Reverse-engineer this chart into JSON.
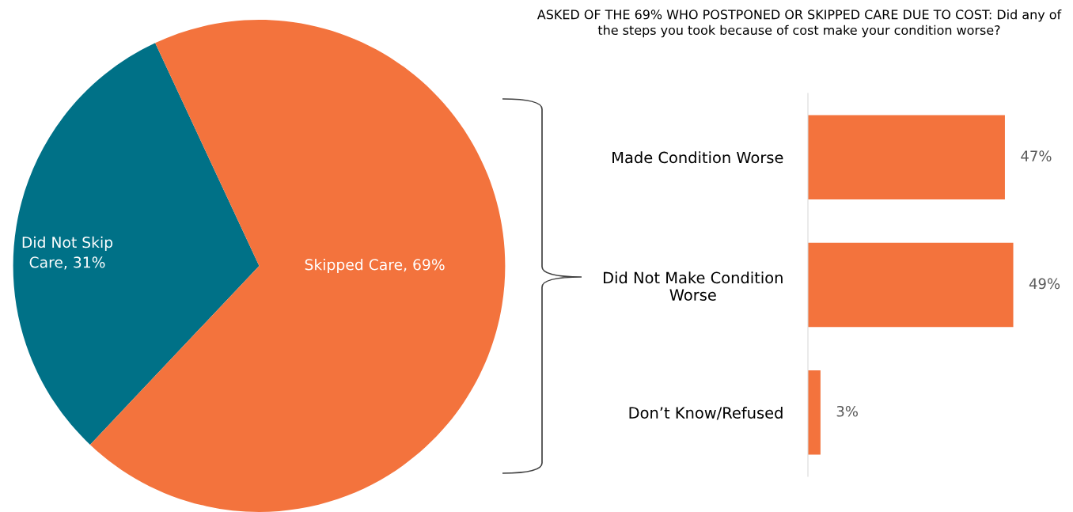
{
  "chart_data": [
    {
      "type": "pie",
      "categories": [
        "Did Not Skip Care",
        "Skipped Care"
      ],
      "values": [
        31,
        69
      ],
      "colors": [
        "#007187",
        "#f3733d"
      ],
      "value_labels": [
        "31%",
        "69%"
      ],
      "legend": false
    },
    {
      "type": "bar",
      "orientation": "horizontal",
      "title": "ASKED OF THE 69% WHO POSTPONED OR SKIPPED CARE DUE TO COST: Did any of the steps you took because of cost make your condition worse?",
      "categories": [
        "Made Condition Worse",
        "Did Not Make Condition Worse",
        "Don’t Know/Refused"
      ],
      "values": [
        47,
        49,
        3
      ],
      "color": "#f3733d",
      "value_labels": [
        "47%",
        "49%",
        "3%"
      ],
      "grid": false,
      "tick_labels": "y",
      "legend": false
    }
  ]
}
